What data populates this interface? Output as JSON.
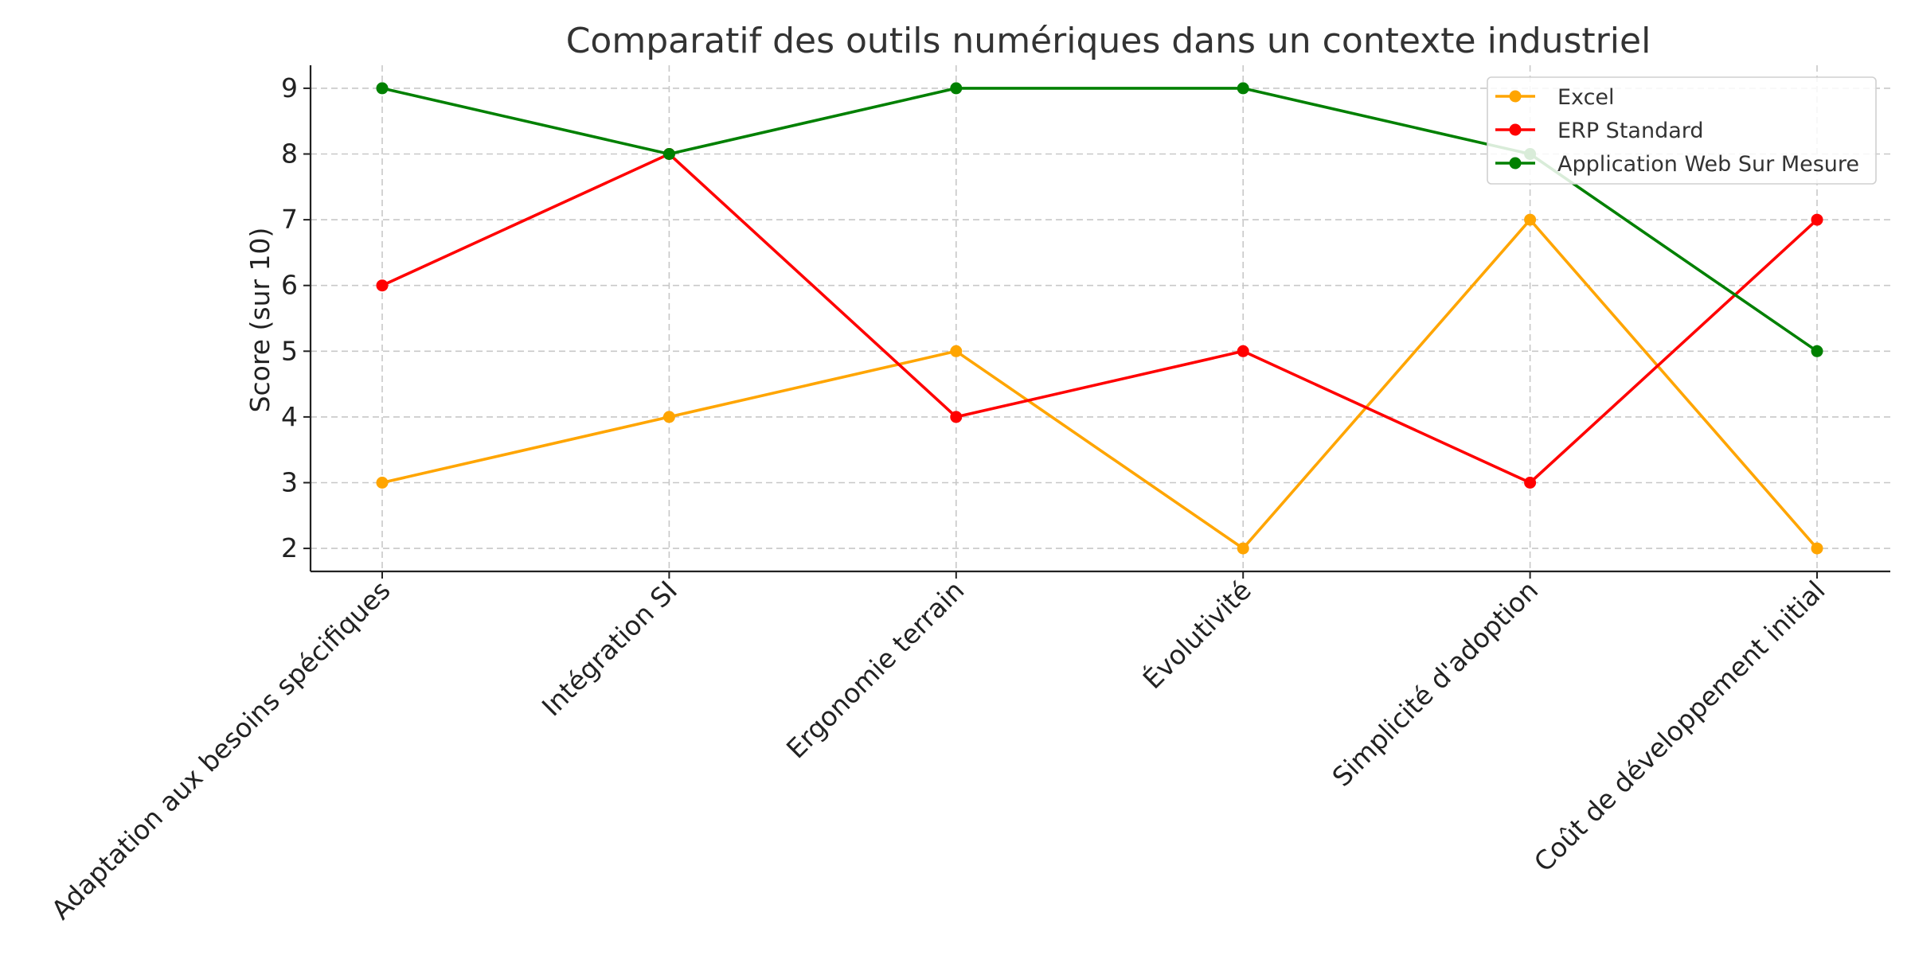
{
  "chart_data": {
    "type": "line",
    "title": "Comparatif des outils numériques dans un contexte industriel",
    "xlabel": "",
    "ylabel": "Score (sur 10)",
    "categories": [
      "Adaptation aux besoins spécifiques",
      "Intégration SI",
      "Ergonomie terrain",
      "Évolutivité",
      "Simplicité d'adoption",
      "Coût de développement initial"
    ],
    "yticks": [
      2,
      3,
      4,
      5,
      6,
      7,
      8,
      9
    ],
    "ylim": [
      1.65,
      9.35
    ],
    "grid": true,
    "legend_position": "top-right",
    "series": [
      {
        "name": "Excel",
        "color": "#ffa500",
        "values": [
          3,
          4,
          5,
          2,
          7,
          2
        ]
      },
      {
        "name": "ERP Standard",
        "color": "#ff0000",
        "values": [
          6,
          8,
          4,
          5,
          3,
          7
        ]
      },
      {
        "name": "Application Web Sur Mesure",
        "color": "#008000",
        "values": [
          9,
          8,
          9,
          9,
          8,
          5
        ]
      }
    ]
  }
}
